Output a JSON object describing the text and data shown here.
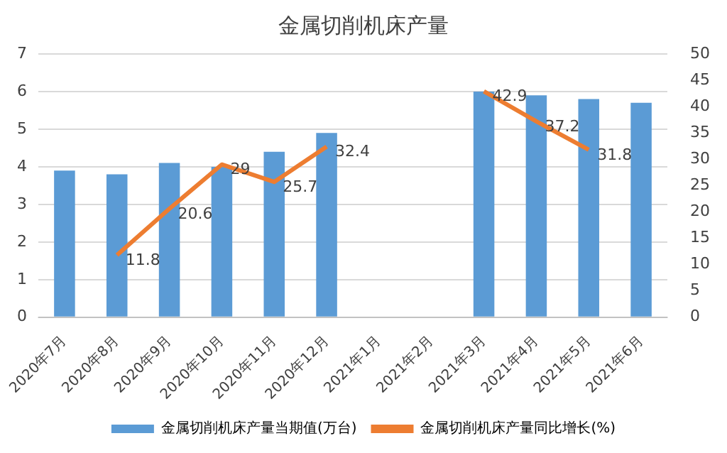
{
  "chart_data": {
    "type": "bar",
    "title": "金属切削机床产量",
    "categories": [
      "2020年7月",
      "2020年8月",
      "2020年9月",
      "2020年10月",
      "2020年11月",
      "2020年12月",
      "2021年1月",
      "2021年2月",
      "2021年3月",
      "2021年4月",
      "2021年5月",
      "2021年6月"
    ],
    "series": [
      {
        "name": "金属切削机床产量当期值(万台)",
        "color": "#5b9bd5",
        "values": [
          3.9,
          3.8,
          4.1,
          4.0,
          4.4,
          4.9,
          null,
          null,
          6.0,
          5.9,
          5.8,
          5.7
        ]
      },
      {
        "name": "金属切削机床产量同比增长(%)",
        "type": "line",
        "axis": "y2",
        "color": "#ed7d31",
        "values": [
          null,
          11.8,
          20.6,
          29,
          25.7,
          32.4,
          null,
          null,
          42.9,
          37.2,
          31.8,
          null
        ],
        "value_labels": [
          null,
          "11.8",
          "20.6",
          "29",
          "25.7",
          "32.4",
          null,
          null,
          "42.9",
          "37.2",
          "31.8",
          null
        ]
      }
    ],
    "ylim": [
      0,
      7
    ],
    "yticks": [
      0,
      1,
      2,
      3,
      4,
      5,
      6,
      7
    ],
    "y2lim": [
      0,
      50
    ],
    "y2ticks": [
      0,
      5,
      10,
      15,
      20,
      25,
      30,
      35,
      40,
      45,
      50
    ],
    "grid": "y",
    "legend": "bottom",
    "marker": "none"
  }
}
